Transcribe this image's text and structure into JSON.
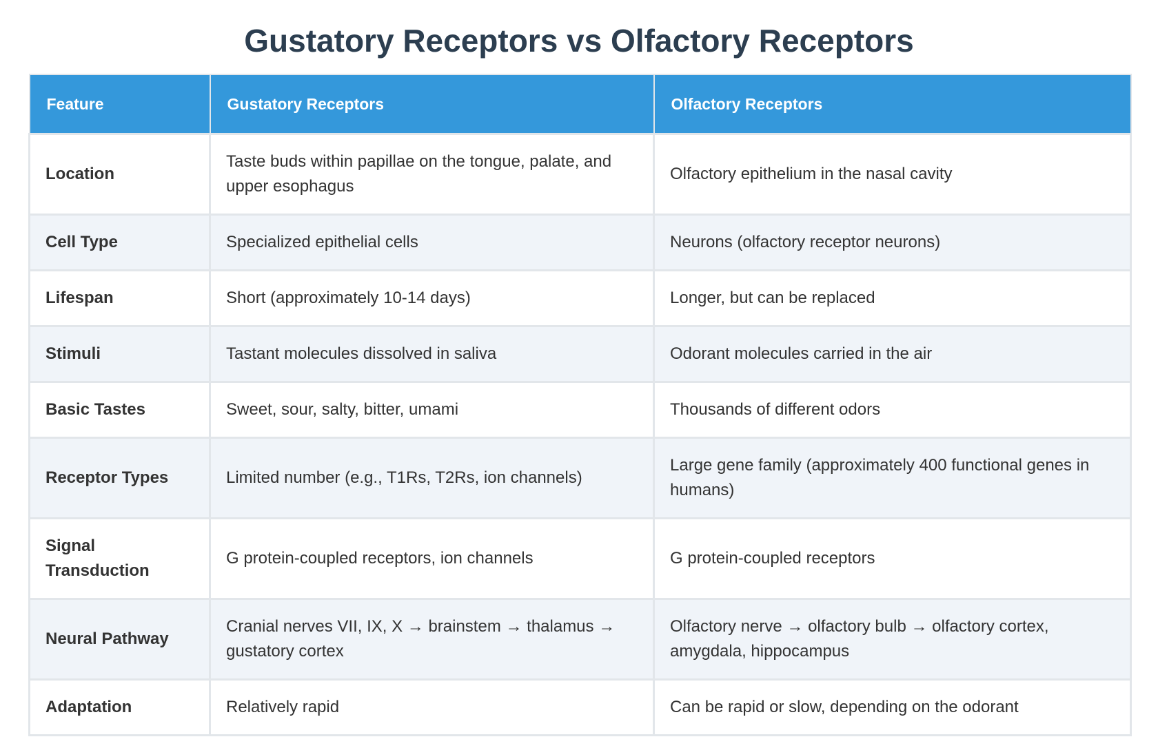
{
  "title": "Gustatory Receptors vs Olfactory Receptors",
  "table": {
    "header": [
      "Feature",
      "Gustatory Receptors",
      "Olfactory Receptors"
    ],
    "rows": [
      [
        "Location",
        "Taste buds within papillae on the tongue, palate, and upper esophagus",
        "Olfactory epithelium in the nasal cavity"
      ],
      [
        "Cell Type",
        "Specialized epithelial cells",
        "Neurons (olfactory receptor neurons)"
      ],
      [
        "Lifespan",
        "Short (approximately 10-14 days)",
        "Longer, but can be replaced"
      ],
      [
        "Stimuli",
        "Tastant molecules dissolved in saliva",
        "Odorant molecules carried in the air"
      ],
      [
        "Basic Tastes",
        "Sweet, sour, salty, bitter, umami",
        "Thousands of different odors"
      ],
      [
        "Receptor Types",
        "Limited number (e.g., T1Rs, T2Rs, ion channels)",
        "Large gene family (approximately 400 functional genes in humans)"
      ],
      [
        "Signal Transduction",
        "G protein-coupled receptors, ion channels",
        "G protein-coupled receptors"
      ],
      [
        "Neural Pathway",
        "Cranial nerves VII, IX, X → brainstem → thalamus → gustatory cortex",
        "Olfactory nerve → olfactory bulb → olfactory cortex, amygdala, hippocampus"
      ],
      [
        "Adaptation",
        "Relatively rapid",
        "Can be rapid or slow, depending on the odorant"
      ]
    ]
  }
}
